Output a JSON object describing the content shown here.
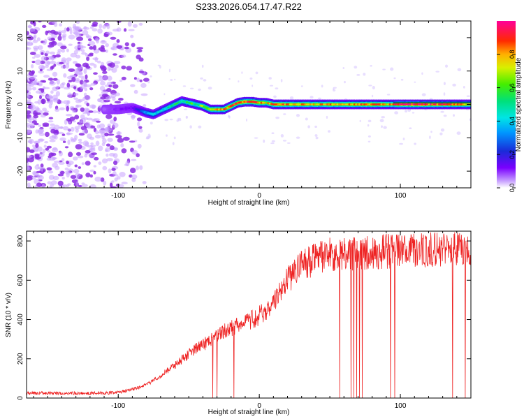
{
  "figure_title": "S233.2026.054.17.47.R22",
  "colors": {
    "snr_line": "#ee2222",
    "ridge_low": "#1a2bd8",
    "background_noise": "#8a2be2",
    "axis": "#000000"
  },
  "colorbar": {
    "label": "Normalized spectral amplitude",
    "ticks": [
      "0.0",
      "0.2",
      "0.4",
      "0.6",
      "0.8"
    ],
    "range": [
      0,
      1
    ],
    "colormap": "rainbow (purple-blue-cyan-green-yellow-red-magenta)"
  },
  "chart_data": [
    {
      "type": "heatmap",
      "title": "S233.2026.054.17.47.R22",
      "xlabel": "Height of straight line (km)",
      "ylabel": "Frequency (Hz)",
      "xlim": [
        -165,
        150
      ],
      "ylim": [
        -25,
        25
      ],
      "xticks": [
        "-100",
        "0",
        "100"
      ],
      "yticks": [
        "-20",
        "-10",
        "0",
        "10",
        "20"
      ],
      "grid": false,
      "description_of_ridge": "Dominant frequency ridge near 0 Hz from about -110 km to 150 km; noise dominates below about -85 km",
      "ridge": {
        "x": [
          -110,
          -100,
          -90,
          -80,
          -75,
          -70,
          -65,
          -60,
          -55,
          -50,
          -45,
          -40,
          -35,
          -30,
          -25,
          -20,
          -15,
          -10,
          -5,
          0,
          5,
          10,
          15,
          20,
          30,
          40,
          50,
          60,
          70,
          80,
          90,
          100,
          110,
          120,
          130,
          140,
          150
        ],
        "y": [
          -1.5,
          -1.5,
          -1.0,
          -2.5,
          -3.0,
          -2.0,
          -1.0,
          0.0,
          1.0,
          0.5,
          0.0,
          -0.5,
          -1.5,
          -1.5,
          -1.5,
          -0.5,
          0.5,
          0.8,
          0.8,
          0.5,
          0.5,
          0.0,
          0.0,
          0.0,
          0.0,
          0.0,
          0.0,
          0.0,
          0.0,
          0.0,
          0.0,
          0.0,
          0.0,
          0.0,
          0.0,
          0.0,
          0.0
        ],
        "amplitude": [
          0.05,
          0.1,
          0.12,
          0.35,
          0.4,
          0.4,
          0.45,
          0.5,
          0.5,
          0.6,
          0.55,
          0.65,
          0.7,
          0.75,
          0.8,
          0.8,
          0.85,
          0.9,
          0.85,
          0.8,
          0.75,
          0.8,
          0.85,
          0.8,
          0.8,
          0.75,
          0.8,
          0.75,
          0.8,
          0.85,
          0.75,
          0.9,
          0.95,
          0.9,
          0.85,
          0.8,
          0.75
        ]
      }
    },
    {
      "type": "line",
      "xlabel": "Height of straight line (km)",
      "ylabel": "SNR (10 * v/v)",
      "xlim": [
        -165,
        150
      ],
      "ylim": [
        0,
        850
      ],
      "xticks": [
        "-100",
        "0",
        "100"
      ],
      "yticks": [
        "0",
        "200",
        "400",
        "600",
        "800"
      ],
      "grid": false,
      "series": [
        {
          "x": [
            -165,
            -150,
            -140,
            -130,
            -120,
            -110,
            -100,
            -95,
            -90,
            -85,
            -80,
            -75,
            -70,
            -65,
            -60,
            -55,
            -50,
            -45,
            -40,
            -35,
            -30,
            -25,
            -20,
            -15,
            -10,
            -5,
            0,
            5,
            10,
            15,
            20,
            25,
            30,
            35,
            40,
            45,
            50,
            55,
            60,
            65,
            70,
            75,
            80,
            85,
            90,
            95,
            100,
            105,
            110,
            115,
            120,
            125,
            130,
            135,
            140,
            145,
            150
          ],
          "values": [
            25,
            25,
            24,
            25,
            25,
            25,
            28,
            35,
            45,
            55,
            70,
            90,
            115,
            140,
            165,
            195,
            225,
            250,
            270,
            295,
            320,
            340,
            355,
            370,
            385,
            400,
            420,
            450,
            480,
            540,
            600,
            640,
            670,
            690,
            710,
            720,
            730,
            735,
            735,
            738,
            740,
            742,
            745,
            745,
            745,
            748,
            750,
            750,
            752,
            755,
            755,
            755,
            758,
            760,
            760,
            755,
            750
          ]
        }
      ],
      "dropouts_x": [
        -33,
        -30,
        -18,
        57,
        65,
        67,
        69,
        71,
        73,
        93,
        96,
        137,
        146
      ]
    }
  ]
}
